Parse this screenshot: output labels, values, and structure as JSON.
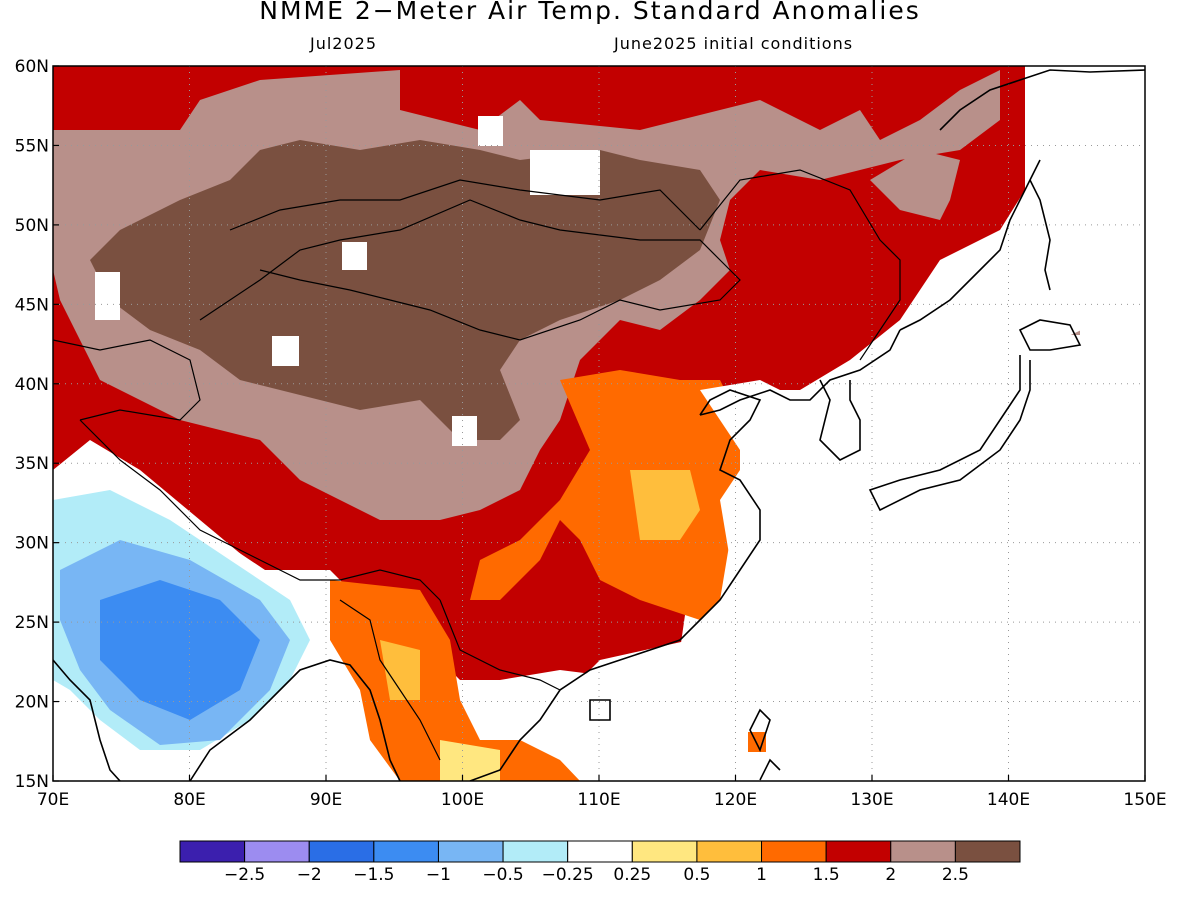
{
  "title": "NMME 2−Meter Air Temp. Standard Anomalies",
  "valid_month": "Jul2025",
  "initial_conditions": "June2025 initial conditions",
  "map": {
    "lon_range": [
      70,
      150
    ],
    "lat_range": [
      15,
      60
    ],
    "lon_ticks": [
      70,
      80,
      90,
      100,
      110,
      120,
      130,
      140,
      150
    ],
    "lat_ticks": [
      15,
      20,
      25,
      30,
      35,
      40,
      45,
      50,
      55,
      60
    ],
    "lon_labels": [
      "70E",
      "80E",
      "90E",
      "100E",
      "110E",
      "120E",
      "130E",
      "140E",
      "150E"
    ],
    "lat_labels": [
      "15N",
      "20N",
      "25N",
      "30N",
      "35N",
      "40N",
      "45N",
      "50N",
      "55N",
      "60N"
    ],
    "gridlines": "dotted"
  },
  "colorbar": {
    "colors": [
      "#3b1fae",
      "#9c8cf0",
      "#2a6ee6",
      "#3c8cf2",
      "#78b6f4",
      "#b2ecf8",
      "#ffffff",
      "#ffe780",
      "#ffbe3c",
      "#ff6a00",
      "#c20000",
      "#b8908a",
      "#7a5040"
    ],
    "labels": [
      "−2.5",
      "−2",
      "−1.5",
      "−1",
      "−0.5",
      "−0.25",
      "0.25",
      "0.5",
      "1",
      "1.5",
      "2",
      "2.5"
    ]
  }
}
